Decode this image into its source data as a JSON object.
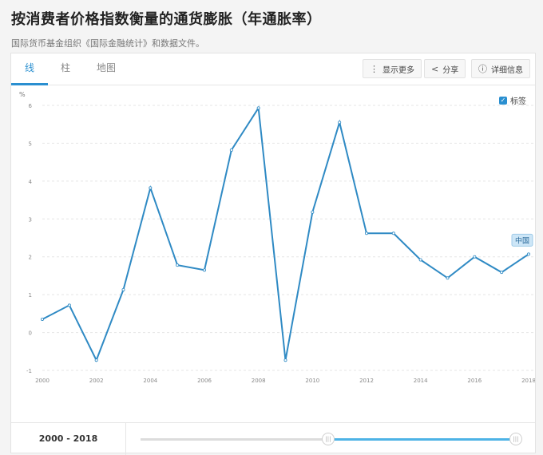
{
  "page": {
    "title": "按消费者价格指数衡量的通货膨胀（年通胀率）",
    "source": "国际货币基金组织《国际金融统计》和数据文件。"
  },
  "tabs": [
    {
      "label": "线",
      "active": true
    },
    {
      "label": "柱",
      "active": false
    },
    {
      "label": "地图",
      "active": false
    }
  ],
  "toolbar": {
    "more_label": "显示更多",
    "more_icon": "vertical-dots-icon",
    "share_label": "分享",
    "share_icon": "share-icon",
    "details_label": "详细信息",
    "details_icon": "info-icon"
  },
  "legend": {
    "checkbox_label": "标签",
    "checked": true
  },
  "range": {
    "label": "2000 - 2018",
    "start_fraction": 0.5,
    "end_fraction": 1.0
  },
  "colors": {
    "accent": "#2a8fd0",
    "line": "#2f8ac4",
    "grid": "#e5e5e5",
    "label_bg": "#cde6f7"
  },
  "chart_data": {
    "type": "line",
    "ylabel": "%",
    "ylim": [
      -1,
      6
    ],
    "yticks": [
      "-1",
      "0",
      "1",
      "2",
      "3",
      "4",
      "5",
      "6"
    ],
    "xticks": [
      "2000",
      "2002",
      "2004",
      "2006",
      "2008",
      "2010",
      "2012",
      "2014",
      "2016",
      "2018"
    ],
    "grid": true,
    "series": [
      {
        "name": "中国",
        "x": [
          2000,
          2001,
          2002,
          2003,
          2004,
          2005,
          2006,
          2007,
          2008,
          2009,
          2010,
          2011,
          2012,
          2013,
          2014,
          2015,
          2016,
          2017,
          2018
        ],
        "values": [
          0.35,
          0.72,
          -0.73,
          1.13,
          3.82,
          1.78,
          1.65,
          4.82,
          5.93,
          -0.73,
          3.18,
          5.55,
          2.62,
          2.62,
          1.92,
          1.44,
          2.0,
          1.59,
          2.07
        ]
      }
    ]
  }
}
